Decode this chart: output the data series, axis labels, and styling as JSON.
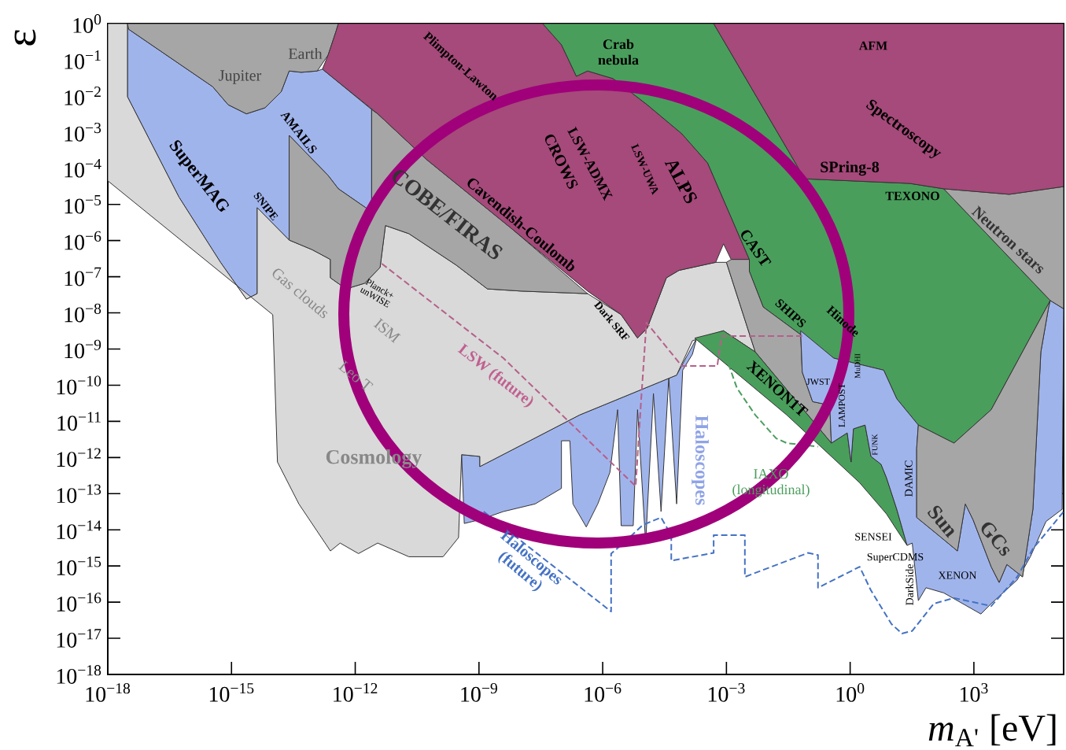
{
  "chart_data": {
    "type": "area",
    "log": "xy",
    "xlabel": "*m*$_{A'}$ [eV]",
    "ylabel": "ε",
    "xlim": [
      1e-18,
      150000
    ],
    "ylim": [
      1e-18,
      1
    ],
    "xticks": [
      {
        "value": 1e-18,
        "label": "10$^{−18}$"
      },
      {
        "value": 1e-15,
        "label": "10$^{−15}$"
      },
      {
        "value": 1e-12,
        "label": "10$^{−12}$"
      },
      {
        "value": 1e-09,
        "label": "10$^{−9}$"
      },
      {
        "value": 1e-06,
        "label": "10$^{−6}$"
      },
      {
        "value": 0.001,
        "label": "10$^{−3}$"
      },
      {
        "value": 1,
        "label": "10$^{0}$"
      },
      {
        "value": 1000,
        "label": "10$^{3}$"
      }
    ],
    "yticks": [
      {
        "value": 1,
        "label": "10$^{0}$"
      },
      {
        "value": 0.1,
        "label": "10$^{−1}$"
      },
      {
        "value": 0.01,
        "label": "10$^{−2}$"
      },
      {
        "value": 0.001,
        "label": "10$^{−3}$"
      },
      {
        "value": 0.0001,
        "label": "10$^{−4}$"
      },
      {
        "value": 1e-05,
        "label": "10$^{−5}$"
      },
      {
        "value": 1e-06,
        "label": "10$^{−6}$"
      },
      {
        "value": 1e-07,
        "label": "10$^{−7}$"
      },
      {
        "value": 1e-08,
        "label": "10$^{−8}$"
      },
      {
        "value": 1e-09,
        "label": "10$^{−9}$"
      },
      {
        "value": 1e-10,
        "label": "10$^{−10}$"
      },
      {
        "value": 1e-11,
        "label": "10$^{−11}$"
      },
      {
        "value": 1e-12,
        "label": "10$^{−12}$"
      },
      {
        "value": 1e-13,
        "label": "10$^{−13}$"
      },
      {
        "value": 1e-14,
        "label": "10$^{−14}$"
      },
      {
        "value": 1e-15,
        "label": "10$^{−15}$"
      },
      {
        "value": 1e-16,
        "label": "10$^{−16}$"
      },
      {
        "value": 1e-17,
        "label": "10$^{−17}$"
      },
      {
        "value": 1e-18,
        "label": "10$^{−18}$"
      }
    ],
    "series": [
      {
        "color": "#a0b4ec",
        "x": [
          3.8e-10,
          4.4e-10,
          1.05e-09,
          3.9e-09,
          2.3e-08,
          1e-07,
          1e-07,
          1.6e-07,
          1.9e-07,
          4e-07,
          7.6e-07,
          1.5e-06,
          2.3e-06,
          2.8e-06,
          5.5e-06,
          7e-06,
          1.1e-05,
          1.7e-05,
          2.6e-05,
          4e-05,
          6.2e-05,
          8.7e-05,
          0.00015,
          0.00019,
          6.2e-05,
          2.75e-07,
          1.05e-09,
          1.05e-09
        ],
        "values": [
          1.2e-12,
          1.5e-14,
          1.9e-14,
          3.2e-14,
          5.2e-14,
          1.4e-13,
          2.9e-12,
          2.9e-12,
          5.2e-14,
          1.2e-14,
          5.2e-14,
          3.9e-13,
          2.1e-11,
          1.3e-14,
          1.3e-14,
          2.1e-11,
          4.3e-15,
          5.9e-11,
          3.2e-14,
          1.6e-10,
          5.2e-14,
          2.6e-10,
          7.2e-10,
          2e-09,
          1.9e-10,
          1.5e-11,
          5.6e-13,
          1.07e-12
        ]
      },
      {
        "color": "#a0b4ec",
        "x": [
          3e-18,
          3e-18,
          5.3e-17,
          5.4e-16,
          2.3e-15,
          4.2e-15,
          4.2e-15,
          2.5e-14,
          2.5e-14,
          2.2e-13,
          3.9e-13,
          2.2e-12,
          2.5e-12,
          2.5e-12,
          1.6e-13,
          1.2e-13,
          4.9e-14,
          2.5e-14,
          1.6e-14,
          6.5e-15,
          2.3e-15,
          8.3e-16,
          3.5e-16,
          3.2e-18
        ],
        "values": [
          1,
          0.0095,
          1.6e-05,
          2.5e-07,
          2.4e-08,
          3.4e-08,
          8.1e-06,
          1.03e-06,
          0.00081,
          6.3e-05,
          2.7e-05,
          6.9e-06,
          6.9e-06,
          0.0042,
          0.055,
          0.049,
          0.045,
          0.049,
          0.013,
          0.0047,
          0.0032,
          0.0057,
          0.018,
          0.7
        ]
      },
      {
        "color": "#d9d9d9",
        "x": [
          1e-18,
          1e-14,
          1.3e-14,
          4.3e-14,
          2.5e-13,
          4.3e-13,
          1.2e-12,
          3.5e-12,
          2e-11,
          1.35e-10,
          3.2e-10,
          3.8e-10,
          1.05e-09,
          1.05e-09,
          2.75e-07,
          6.2e-05,
          0.00015,
          0.00085,
          0.005,
          0.001,
          0.00055,
          7.1e-05,
          3.5e-05,
          1.2e-05,
          7e-06,
          2.8e-06,
          4.3e-07,
          1.07e-08,
          1.6e-09,
          2.8e-10,
          2e-11,
          5.4e-12,
          4e-12,
          1.7e-12,
          6e-13,
          2.5e-13,
          2.5e-13,
          9e-14,
          2.5e-14,
          4.2e-15,
          4.2e-15,
          2.3e-15,
          5.4e-16,
          5.3e-17,
          3e-18,
          3e-18,
          1e-18
        ],
        "values": [
          4.5e-05,
          8.9e-09,
          7.5e-13,
          5.2e-14,
          2.6e-15,
          4.3e-15,
          2.2e-15,
          4.3e-15,
          1.8e-15,
          1.8e-15,
          6.1e-15,
          1.2e-12,
          1.07e-12,
          5.6e-13,
          1.5e-11,
          1.9e-10,
          1.7e-09,
          3.2e-09,
          8.3e-10,
          2.5e-07,
          2.5e-07,
          1.5e-07,
          9.3e-08,
          3.8e-09,
          2e-09,
          8.9e-09,
          3.4e-08,
          4e-08,
          4.6e-08,
          2.1e-07,
          1.55e-06,
          2.6e-06,
          1.8e-07,
          6.6e-08,
          4.6e-08,
          9.3e-08,
          3e-07,
          5.6e-07,
          1.03e-06,
          8.1e-06,
          3.4e-08,
          2.4e-08,
          2.5e-07,
          1.6e-05,
          0.0095,
          1,
          1
        ]
      },
      {
        "color": "#a6a6a6",
        "x": [
          2.5e-14,
          9e-14,
          2.5e-13,
          2.5e-13,
          6e-13,
          1.7e-12,
          4e-12,
          5.4e-12,
          2e-11,
          2.8e-10,
          1.6e-09,
          1.07e-08,
          4.3e-07,
          6e-09,
          5.5e-11,
          3.5e-12,
          2.5e-12,
          2.5e-12,
          2.2e-12,
          3.9e-13,
          2.2e-13,
          2.5e-14
        ],
        "values": [
          1.03e-06,
          5.6e-07,
          3e-07,
          9.3e-08,
          4.6e-08,
          6.6e-08,
          1.8e-07,
          2.6e-06,
          1.55e-06,
          2.1e-07,
          4.6e-08,
          4e-08,
          3.4e-08,
          2.2e-06,
          0.00017,
          0.0032,
          0.0042,
          6.9e-06,
          6.9e-06,
          2.7e-05,
          6.3e-05,
          0.00081
        ]
      },
      {
        "color": "#a6a6a6",
        "x": [
          3e-18,
          3.2e-18,
          3.5e-16,
          8.3e-16,
          2.3e-15,
          6.5e-15,
          1.6e-14,
          2.5e-14,
          4.9e-14,
          1.2e-13,
          2.2e-13,
          3.4e-13,
          3.9e-13
        ],
        "values": [
          1,
          0.7,
          0.018,
          0.0057,
          0.0032,
          0.0047,
          0.013,
          0.049,
          0.045,
          0.049,
          0.135,
          0.6,
          1
        ]
      },
      {
        "color": "#a54a7a",
        "x": [
          3.9e-13,
          3.4e-13,
          2.2e-13,
          1.6e-13,
          3.5e-12,
          5.5e-11,
          6e-09,
          4.3e-07,
          2.8e-06,
          7e-06,
          1.2e-05,
          3.5e-05,
          7.1e-05,
          0.00055,
          0.00085,
          0.0013,
          0.0036,
          0.00035,
          8.3e-05,
          1.2e-05,
          1.8e-06,
          4.3e-07,
          2.3e-07,
          1e-07,
          3.5e-08
        ],
        "values": [
          1,
          0.6,
          0.135,
          0.055,
          0.0032,
          0.00017,
          2.2e-06,
          4e-08,
          8.9e-09,
          2e-09,
          3.8e-09,
          9.3e-08,
          1.5e-07,
          2.5e-07,
          8.1e-07,
          3e-07,
          3e-07,
          0.00014,
          0.0009,
          0.0057,
          0.03,
          0.049,
          0.035,
          0.26,
          1
        ]
      },
      {
        "color": "#4a9e5c",
        "x": [
          3.5e-08,
          0.00049,
          0.079,
          28,
          186,
          71000,
          2630,
          330,
          45,
          13.5,
          6.5,
          0.4,
          0.063,
          0.0078,
          0.0036,
          0.0036,
          0.00035,
          8.3e-05,
          1.2e-05,
          1.8e-06,
          4.3e-07,
          2.3e-07,
          1e-07
        ],
        "values": [
          1,
          1,
          5.1e-05,
          3.8e-05,
          2.7e-05,
          2.2e-08,
          2.1e-11,
          2.5e-12,
          7.9e-12,
          4.2e-11,
          2.6e-10,
          5.6e-10,
          2.5e-09,
          1.45e-08,
          1.4e-07,
          3e-07,
          0.00014,
          0.0009,
          0.0057,
          0.03,
          0.049,
          0.035,
          0.26
        ]
      },
      {
        "color": "#a6a6a6",
        "x": [
          0.0013,
          0.0036,
          0.0036,
          0.0078,
          0.063,
          0.069,
          0.123,
          0.32,
          0.35,
          0.005,
          0.001
        ],
        "values": [
          3e-07,
          3e-07,
          1.4e-07,
          1.45e-08,
          2.5e-09,
          2.3e-10,
          3.5e-11,
          2.8e-11,
          2.5e-12,
          8.3e-10,
          2.5e-07
        ]
      },
      {
        "color": "#4a9e5c",
        "x": [
          0.00017,
          0.00085,
          0.005,
          0.35,
          0.85,
          1.05,
          1.2,
          2.3,
          3.2,
          5.6,
          7.6,
          13.5,
          24,
          13.5,
          7.6,
          1.7,
          0.029
        ],
        "values": [
          2e-09,
          3.2e-09,
          8.3e-10,
          2.5e-12,
          4.8e-12,
          7.5e-13,
          6.2e-12,
          7.9e-12,
          1.07e-12,
          6.5e-13,
          2.75e-13,
          3.7e-14,
          3.7e-15,
          1e-14,
          2.75e-14,
          2e-13,
          1.5e-11
        ]
      },
      {
        "color": "#a0b4ec",
        "x": [
          0.063,
          0.069,
          0.123,
          0.32,
          0.35,
          0.85,
          1.05,
          1.2,
          2.3,
          3.2,
          5.6,
          7.6,
          13.5,
          24,
          32,
          45,
          69,
          186,
          1480,
          2630,
          11200,
          23400,
          56000,
          138000,
          150000,
          71000,
          65000,
          42000,
          27000,
          15100,
          6300,
          4100,
          2630,
          955,
          620,
          400,
          138,
          41,
          41,
          45,
          13.5,
          6.5,
          0.4
        ],
        "values": [
          3.2e-09,
          2.3e-10,
          3.5e-11,
          2.8e-11,
          2.5e-12,
          4.8e-12,
          7.5e-13,
          6.2e-12,
          7.9e-12,
          1.07e-12,
          6.5e-13,
          2.75e-13,
          3.7e-14,
          3.7e-15,
          4.3e-15,
          1.1e-16,
          2.5e-16,
          1.8e-16,
          4.7e-17,
          9.1e-17,
          4.1e-16,
          1.8e-15,
          1.7e-14,
          3.7e-14,
          1.3e-08,
          2.2e-08,
          1.45e-08,
          8.3e-10,
          3.7e-14,
          5e-16,
          1.1e-15,
          3.5e-16,
          9.5e-16,
          1.9e-14,
          5.2e-14,
          2.6e-15,
          7.1e-15,
          2.2e-14,
          1.8e-12,
          7.9e-12,
          4.2e-11,
          2.6e-10,
          5.6e-10
        ]
      },
      {
        "color": "#a6a6a6",
        "x": [
          41,
          41,
          138,
          400,
          620,
          955,
          2630,
          4100,
          6300,
          15100,
          27000,
          42000,
          65000,
          71000,
          2630,
          330,
          45
        ],
        "values": [
          1.8e-12,
          2.2e-14,
          7.1e-15,
          2.6e-15,
          5.2e-14,
          1.9e-14,
          9.5e-16,
          3.5e-16,
          1.1e-15,
          5e-16,
          3.7e-14,
          8.3e-10,
          1.45e-08,
          2.2e-08,
          2.1e-11,
          2.5e-12,
          7.9e-12
        ]
      },
      {
        "color": "#a6a6a6",
        "x": [
          186,
          71000,
          150000,
          150000,
          7200
        ],
        "values": [
          2.7e-05,
          2.2e-08,
          1.3e-08,
          3.1e-05,
          1.9e-05
        ]
      },
      {
        "color": "#a54a7a",
        "x": [
          0.00049,
          0.079,
          28,
          186,
          7200,
          150000,
          150000
        ],
        "values": [
          1,
          5.1e-05,
          3.8e-05,
          2.7e-05,
          1.9e-05,
          3.1e-05,
          1
        ]
      },
      {
        "type": "line",
        "line_style": "dashed",
        "color": "#b5608a",
        "x": [
          4.4e-12,
          3.9e-09,
          6.3e-06,
          8.5e-06,
          1.15e-05,
          8.3e-05,
          0.0006,
          0.00076,
          0.069
        ],
        "values": [
          2.3e-07,
          5.6e-10,
          1.6e-13,
          3.5e-11,
          5.4e-09,
          3.4e-10,
          3.4e-10,
          2.3e-09,
          2.3e-09
        ]
      },
      {
        "type": "line",
        "line_style": "dashed",
        "color": "#4472c4",
        "x": [
          1.3e-09,
          1.6e-06,
          1.6e-06,
          3.2e-06,
          9.3e-06,
          2.6e-05,
          4.6e-05,
          4.6e-05,
          0.00049,
          0.00049,
          0.0028,
          0.0028,
          0.095,
          0.166,
          0.166,
          1.7,
          3.2,
          10,
          18,
          32,
          107,
          330,
          2630,
          11200,
          27000,
          65000,
          150000
        ],
        "values": [
          3.2e-14,
          5.5e-17,
          2.2e-15,
          4.3e-15,
          1.35e-14,
          2.2e-14,
          7.1e-15,
          1.4e-15,
          2.3e-15,
          7.1e-15,
          7.1e-15,
          5e-16,
          2.3e-15,
          2e-15,
          2.5e-16,
          9.5e-16,
          2.1e-16,
          2.5e-17,
          1.35e-17,
          1.6e-17,
          9.1e-17,
          1.3e-16,
          7.8e-17,
          5e-16,
          3e-15,
          1e-14,
          3.2e-14
        ]
      },
      {
        "type": "line",
        "line_style": "dashed",
        "color": "#4a9e5c",
        "x": [
          0.00076,
          0.0012,
          0.0018,
          0.005,
          0.016,
          0.029,
          0.166
        ],
        "values": [
          1.2e-09,
          3.1e-10,
          8.3e-11,
          1.5e-11,
          3.4e-12,
          2.5e-12,
          2e-12
        ]
      }
    ],
    "annotations": [
      "Earth",
      "Jupiter",
      "SuperMAG",
      "AMAILS",
      "SNIPE",
      "Plimpton-Lawton",
      "Crab nebula",
      "AFM",
      "Spectroscopy",
      "SPring-8",
      "TEXONO",
      "Neutron stars",
      "COBE/FIRAS",
      "Cavendish-Coulomb",
      "CROWS",
      "LSW-ADMX",
      "LSW-UWA",
      "ALPS",
      "CAST",
      "SHIPS",
      "Hinode",
      "XENON1T",
      "JWST",
      "LAMPOST",
      "MuDHI",
      "FUNK",
      "DAMIC",
      "Sun",
      "GCs",
      "SENSEI",
      "SuperCDMS",
      "XENON",
      "DarkSide",
      "Haloscopes",
      "Haloscopes (future)",
      "LSW (future)",
      "IAXO (longitudinal)",
      "Dark SRF",
      "Planck+ unWISE",
      "Gas clouds",
      "ISM",
      "Leo T",
      "Cosmology"
    ]
  }
}
